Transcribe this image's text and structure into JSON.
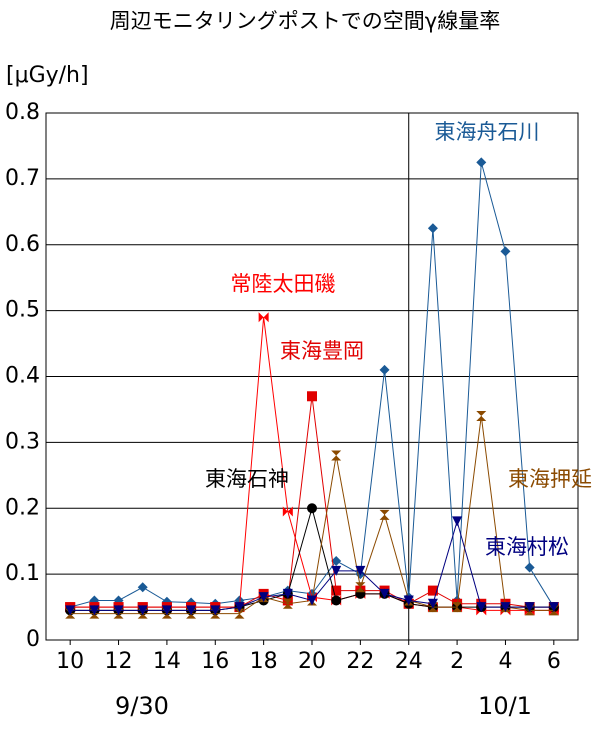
{
  "chart_data": {
    "type": "line",
    "title": "周辺モニタリングポストでの空間γ線量率",
    "y_label": "[μGy/h]",
    "x": [
      10,
      11,
      12,
      13,
      14,
      15,
      16,
      17,
      18,
      19,
      20,
      21,
      22,
      23,
      24,
      25,
      26,
      27,
      28,
      29,
      30
    ],
    "xlim": [
      9,
      31
    ],
    "xticks": [
      10,
      12,
      14,
      16,
      18,
      20,
      22,
      24,
      {
        "value": 26,
        "label": "2"
      },
      {
        "value": 28,
        "label": "4"
      },
      {
        "value": 30,
        "label": "6"
      }
    ],
    "ylim": [
      0,
      0.8
    ],
    "yticks": [
      0,
      0.1,
      0.2,
      0.3,
      0.4,
      0.5,
      0.6,
      0.7,
      0.8
    ],
    "grid": true,
    "day_boundary": 24,
    "date_labels": [
      "9/30",
      "10/1"
    ],
    "series": [
      {
        "name": "東海舟石川",
        "color": "#1a5a96",
        "marker": "diamond",
        "values": [
          0.05,
          0.06,
          0.06,
          0.08,
          0.058,
          0.057,
          0.055,
          0.06,
          0.065,
          0.075,
          0.07,
          0.12,
          0.1,
          0.41,
          0.065,
          0.625,
          0.06,
          0.725,
          0.59,
          0.11,
          0.05
        ]
      },
      {
        "name": "常陸太田磯",
        "color": "#ff0000",
        "marker": "bowtie",
        "values": [
          0.05,
          0.05,
          0.05,
          0.05,
          0.05,
          0.05,
          0.05,
          0.05,
          0.49,
          0.195,
          0.065,
          0.06,
          0.07,
          0.07,
          0.055,
          0.05,
          0.05,
          0.045,
          0.045,
          0.045,
          0.045
        ]
      },
      {
        "name": "東海豊岡",
        "color": "#e00000",
        "marker": "square",
        "values": [
          0.05,
          0.05,
          0.05,
          0.05,
          0.05,
          0.05,
          0.05,
          0.05,
          0.07,
          0.06,
          0.37,
          0.075,
          0.075,
          0.075,
          0.055,
          0.075,
          0.055,
          0.055,
          0.055,
          0.05,
          0.05
        ]
      },
      {
        "name": "東海石神",
        "color": "#000000",
        "marker": "circle",
        "values": [
          0.045,
          0.045,
          0.045,
          0.045,
          0.045,
          0.045,
          0.045,
          0.05,
          0.06,
          0.07,
          0.2,
          0.06,
          0.07,
          0.07,
          0.055,
          0.05,
          0.05,
          0.05,
          0.05,
          0.05,
          0.05
        ]
      },
      {
        "name": "東海押延",
        "color": "#8b4a00",
        "marker": "hourglass",
        "values": [
          0.04,
          0.04,
          0.04,
          0.04,
          0.04,
          0.04,
          0.04,
          0.04,
          0.065,
          0.055,
          0.06,
          0.28,
          0.08,
          0.19,
          0.06,
          0.05,
          0.05,
          0.34,
          0.05,
          0.045,
          0.045
        ]
      },
      {
        "name": "東海村松",
        "color": "#000080",
        "marker": "triangle",
        "values": [
          0.045,
          0.045,
          0.045,
          0.045,
          0.045,
          0.045,
          0.045,
          0.05,
          0.065,
          0.07,
          0.06,
          0.105,
          0.105,
          0.07,
          0.06,
          0.055,
          0.18,
          0.05,
          0.05,
          0.05,
          0.05
        ]
      }
    ]
  }
}
